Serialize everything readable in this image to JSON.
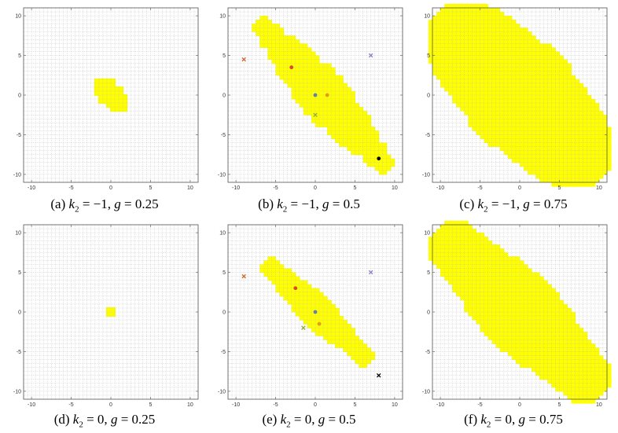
{
  "chart_data": [
    {
      "type": "scatter",
      "panel": "a",
      "caption": {
        "label": "(a) ",
        "var": "k",
        "sub": "2",
        "mid": " = −1, ",
        "var2": "g",
        "rest": " = 0.25"
      },
      "xlim": [
        -11,
        11
      ],
      "ylim": [
        -11,
        11
      ],
      "xticks": [
        -10,
        -5,
        0,
        5,
        10
      ],
      "yticks": [
        -10,
        -5,
        0,
        5,
        10
      ],
      "grid": true,
      "region_color": "#ffff00",
      "region": {
        "kind": "blob",
        "cells": [
          [
            -1,
            1
          ],
          [
            0,
            1
          ],
          [
            -1,
            0
          ],
          [
            0,
            0
          ],
          [
            1,
            0
          ],
          [
            0,
            -1
          ],
          [
            1,
            -1
          ],
          [
            -1,
            1.5
          ],
          [
            0,
            1.5
          ],
          [
            1,
            -1.5
          ],
          [
            0.5,
            -1.5
          ],
          [
            -0.5,
            0.5
          ],
          [
            0.5,
            0.5
          ],
          [
            1,
            0.5
          ],
          [
            -1,
            0.5
          ],
          [
            1,
            -0.5
          ],
          [
            -0.5,
            -0.5
          ],
          [
            0.5,
            -1
          ],
          [
            1.5,
            -1
          ],
          [
            1.5,
            -1.5
          ],
          [
            -1.5,
            1
          ],
          [
            -1.5,
            0.5
          ],
          [
            -1.5,
            1.5
          ],
          [
            -1,
            -0.5
          ],
          [
            1.5,
            -0.5
          ]
        ]
      },
      "markers": []
    },
    {
      "type": "scatter",
      "panel": "b",
      "caption": {
        "label": "(b) ",
        "var": "k",
        "sub": "2",
        "mid": " = −1, ",
        "var2": "g",
        "rest": " = 0.5"
      },
      "xlim": [
        -11,
        11
      ],
      "ylim": [
        -11,
        11
      ],
      "xticks": [
        -10,
        -5,
        0,
        5,
        10
      ],
      "yticks": [
        -10,
        -5,
        0,
        5,
        10
      ],
      "grid": true,
      "region_color": "#ffff00",
      "region": {
        "kind": "band",
        "from": [
          -7,
          9
        ],
        "to": [
          9,
          -9
        ],
        "half_width": [
          0.4,
          1.8,
          2.6,
          1.8,
          0.4
        ]
      },
      "markers": [
        {
          "x": -3,
          "y": 3.5,
          "shape": "dot",
          "color": "#d8463a"
        },
        {
          "x": 0,
          "y": 0,
          "shape": "dot",
          "color": "#5e81b5"
        },
        {
          "x": 1.5,
          "y": 0,
          "shape": "dot",
          "color": "#e19c24"
        },
        {
          "x": 0,
          "y": -2.5,
          "shape": "cross",
          "color": "#8fb032"
        },
        {
          "x": 8,
          "y": -8,
          "shape": "dot",
          "color": "#000000"
        },
        {
          "x": -9,
          "y": 4.5,
          "shape": "cross",
          "color": "#c8682c"
        },
        {
          "x": 7,
          "y": 5,
          "shape": "cross",
          "color": "#8a7fc9"
        }
      ]
    },
    {
      "type": "scatter",
      "panel": "c",
      "caption": {
        "label": "(c) ",
        "var": "k",
        "sub": "2",
        "mid": " = −1, ",
        "var2": "g",
        "rest": " = 0.75"
      },
      "xlim": [
        -11,
        11
      ],
      "ylim": [
        -11,
        11
      ],
      "xticks": [
        -10,
        -5,
        0,
        5,
        10
      ],
      "yticks": [
        -10,
        -5,
        0,
        5,
        10
      ],
      "grid": true,
      "region_color": "#ffff00",
      "region": {
        "kind": "band",
        "from": [
          -10,
          10
        ],
        "to": [
          10,
          -10
        ],
        "half_width": [
          3.5,
          5.5,
          6.5,
          5.5,
          3.5
        ]
      },
      "markers": []
    },
    {
      "type": "scatter",
      "panel": "d",
      "caption": {
        "label": "(d) ",
        "var": "k",
        "sub": "2",
        "mid": " = 0, ",
        "var2": "g",
        "rest": " = 0.25"
      },
      "xlim": [
        -11,
        11
      ],
      "ylim": [
        -11,
        11
      ],
      "xticks": [
        -10,
        -5,
        0,
        5,
        10
      ],
      "yticks": [
        -10,
        -5,
        0,
        5,
        10
      ],
      "grid": true,
      "region_color": "#ffff00",
      "region": {
        "kind": "blob",
        "cells": [
          [
            0,
            0
          ]
        ]
      },
      "markers": []
    },
    {
      "type": "scatter",
      "panel": "e",
      "caption": {
        "label": "(e) ",
        "var": "k",
        "sub": "2",
        "mid": " = 0, ",
        "var2": "g",
        "rest": " = 0.5"
      },
      "xlim": [
        -11,
        11
      ],
      "ylim": [
        -11,
        11
      ],
      "xticks": [
        -10,
        -5,
        0,
        5,
        10
      ],
      "yticks": [
        -10,
        -5,
        0,
        5,
        10
      ],
      "grid": true,
      "region_color": "#ffff00",
      "region": {
        "kind": "band",
        "from": [
          -6,
          6
        ],
        "to": [
          6.5,
          -6
        ],
        "half_width": [
          0.3,
          1.0,
          1.6,
          0.8,
          0.3
        ]
      },
      "markers": [
        {
          "x": -2.5,
          "y": 3,
          "shape": "dot",
          "color": "#d8463a"
        },
        {
          "x": 0,
          "y": 0,
          "shape": "dot",
          "color": "#5e81b5"
        },
        {
          "x": 0.5,
          "y": -1.5,
          "shape": "dot",
          "color": "#e19c24"
        },
        {
          "x": -1.5,
          "y": -2,
          "shape": "cross",
          "color": "#8fb032"
        },
        {
          "x": 8,
          "y": -8,
          "shape": "cross",
          "color": "#000000"
        },
        {
          "x": -9,
          "y": 4.5,
          "shape": "cross",
          "color": "#c8682c"
        },
        {
          "x": 7,
          "y": 5,
          "shape": "cross",
          "color": "#8a7fc9"
        }
      ]
    },
    {
      "type": "scatter",
      "panel": "f",
      "caption": {
        "label": "(f) ",
        "var": "k",
        "sub": "2",
        "mid": " = 0, ",
        "var2": "g",
        "rest": " = 0.75"
      },
      "xlim": [
        -11,
        11
      ],
      "ylim": [
        -11,
        11
      ],
      "xticks": [
        -10,
        -5,
        0,
        5,
        10
      ],
      "yticks": [
        -10,
        -5,
        0,
        5,
        10
      ],
      "grid": true,
      "region_color": "#ffff00",
      "region": {
        "kind": "band",
        "from": [
          -10,
          10
        ],
        "to": [
          10,
          -10
        ],
        "half_width": [
          2.0,
          3.5,
          4.5,
          3.5,
          2.0
        ]
      },
      "markers": []
    }
  ]
}
